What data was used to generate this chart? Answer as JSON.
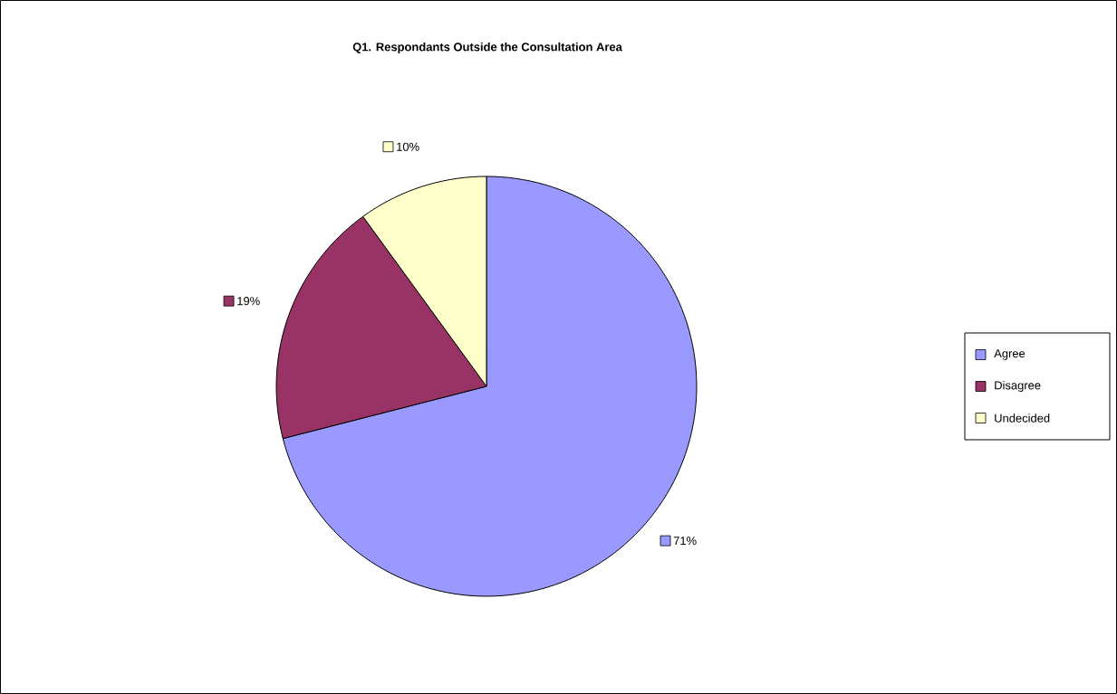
{
  "chart_data": {
    "type": "pie",
    "title": "Q1. Respondants Outside the Consultation Area",
    "categories": [
      "Agree",
      "Disagree",
      "Undecided"
    ],
    "values": [
      71,
      19,
      10
    ],
    "value_labels": [
      "71%",
      "19%",
      "10%"
    ],
    "colors": [
      "#9999ff",
      "#993366",
      "#ffffcc"
    ],
    "legend": "right"
  }
}
